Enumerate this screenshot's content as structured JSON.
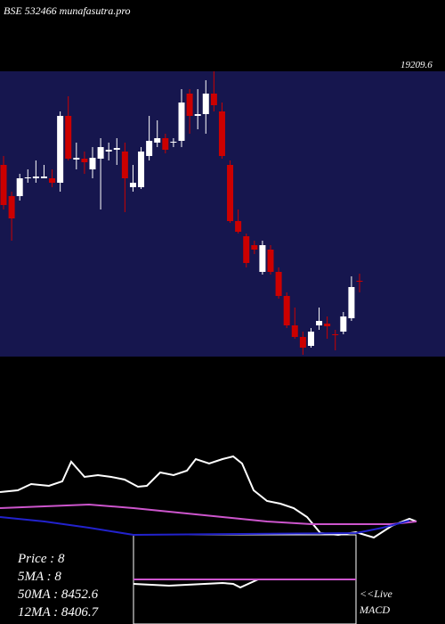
{
  "chart_data": {
    "type": "candlestick",
    "title": "BSE 532466 munafasutra.pro",
    "price_label": "19209.6",
    "ylim": [
      0,
      320
    ],
    "open": [
      215,
      180,
      180,
      200,
      200,
      200,
      200,
      195,
      270,
      221,
      222,
      210,
      222,
      230,
      232,
      230,
      190,
      190,
      225,
      240,
      245,
      240,
      242,
      295,
      270,
      272,
      295,
      275,
      215,
      152,
      135,
      125,
      95,
      120,
      95,
      68,
      35,
      22,
      12,
      35,
      37,
      25,
      28,
      43,
      85
    ],
    "high": [
      225,
      185,
      205,
      210,
      220,
      215,
      210,
      275,
      292,
      240,
      230,
      235,
      245,
      240,
      245,
      240,
      215,
      235,
      270,
      265,
      250,
      245,
      300,
      300,
      300,
      310,
      320,
      285,
      220,
      165,
      138,
      130,
      130,
      125,
      100,
      72,
      55,
      28,
      32,
      55,
      45,
      30,
      50,
      90,
      93
    ],
    "low": [
      165,
      130,
      175,
      195,
      195,
      200,
      190,
      185,
      220,
      210,
      205,
      200,
      165,
      220,
      215,
      162,
      185,
      188,
      220,
      235,
      228,
      235,
      235,
      250,
      255,
      250,
      275,
      222,
      150,
      138,
      100,
      115,
      92,
      92,
      65,
      32,
      20,
      2,
      10,
      30,
      20,
      7,
      25,
      40,
      72
    ],
    "close": [
      170,
      155,
      200,
      201,
      202,
      202,
      195,
      270,
      222,
      223,
      218,
      223,
      235,
      232,
      234,
      200,
      195,
      230,
      242,
      245,
      232,
      241,
      285,
      270,
      272,
      295,
      282,
      225,
      152,
      140,
      105,
      120,
      125,
      95,
      68,
      35,
      22,
      10,
      28,
      40,
      34,
      24,
      45,
      78,
      84
    ],
    "up_color": "#ffffff",
    "down_color": "#cc0000",
    "panel_color": "#16164e",
    "indicator": {
      "ylim": [
        0,
        200
      ],
      "series": [
        {
          "color": "#ffffff",
          "x": [
            0,
            20,
            35,
            55,
            70,
            80,
            95,
            110,
            125,
            140,
            155,
            165,
            180,
            195,
            210,
            220,
            235,
            250,
            262,
            272,
            285,
            300,
            315,
            330,
            345,
            360,
            380,
            400,
            420,
            440,
            460,
            468
          ],
          "values": [
            148,
            150,
            157,
            155,
            160,
            182,
            165,
            167,
            165,
            162,
            154,
            155,
            170,
            167,
            172,
            185,
            180,
            185,
            188,
            180,
            150,
            138,
            135,
            130,
            120,
            102,
            100,
            103,
            97,
            110,
            118,
            115
          ]
        },
        {
          "color": "#cc55cc",
          "x": [
            0,
            50,
            100,
            150,
            200,
            250,
            300,
            350,
            400,
            440,
            468
          ],
          "values": [
            130,
            132,
            134,
            130,
            125,
            120,
            115,
            112,
            112,
            112,
            115
          ]
        },
        {
          "color": "#2222cc",
          "x": [
            0,
            50,
            100,
            150,
            400,
            430,
            460
          ],
          "values": [
            120,
            115,
            108,
            100,
            102,
            108,
            116
          ]
        }
      ]
    },
    "legend_lines": [
      "Price : 8",
      "5MA : 8",
      "50MA : 8452.6",
      "12MA : 8406.7"
    ],
    "live": "<<Live",
    "macd": "MACD",
    "macd_panel": {
      "ylim": [
        0,
        100
      ],
      "series": [
        {
          "color": "#ffffff",
          "x": [
            150,
            170,
            190,
            210,
            230,
            250,
            262,
            270,
            290,
            320,
            350,
            385
          ],
          "values": [
            45,
            44,
            43,
            44,
            45,
            46,
            45,
            41,
            50,
            50,
            50,
            50
          ]
        },
        {
          "color": "#cc55cc",
          "x": [
            150,
            250,
            385,
            400
          ],
          "values": [
            50,
            50,
            50,
            50
          ]
        }
      ]
    }
  }
}
